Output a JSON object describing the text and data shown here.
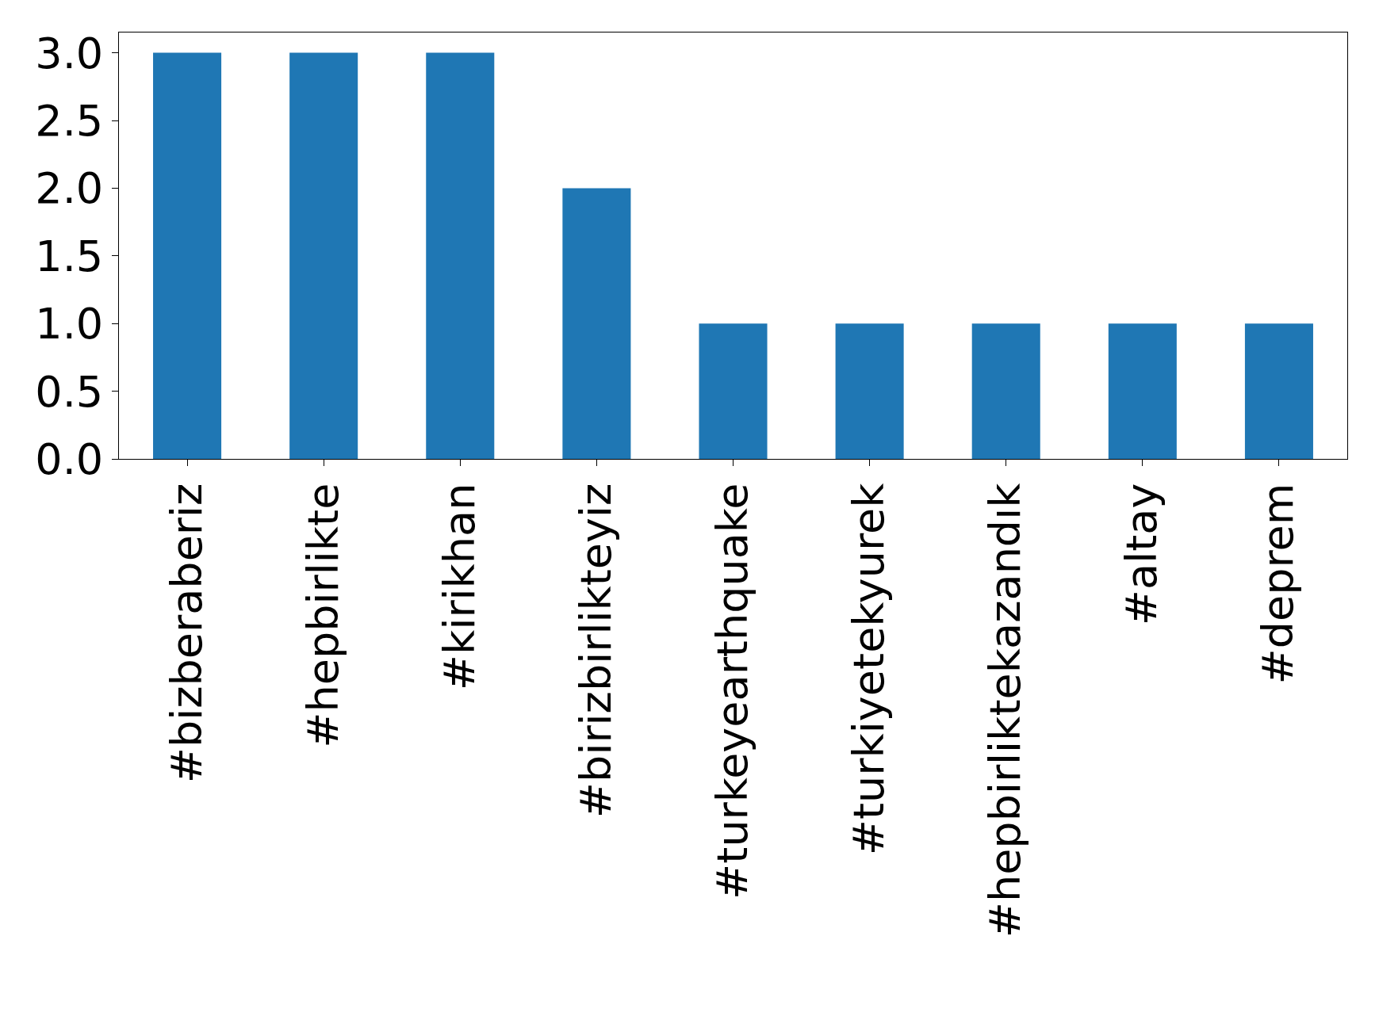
{
  "chart_data": {
    "type": "bar",
    "categories": [
      "#bizberaberiz",
      "#hepbirlikte",
      "#kirikhan",
      "#birizbirlikteyiz",
      "#turkeyearthquake",
      "#turkiyetekyurek",
      "#hepbirliktekazandık",
      "#altay",
      "#deprem"
    ],
    "values": [
      3,
      3,
      3,
      2,
      1,
      1,
      1,
      1,
      1
    ],
    "color": "#1f77b4",
    "ylim": [
      0,
      3.15
    ],
    "yticks": [
      {
        "value": 0,
        "label": "0.0"
      },
      {
        "value": 0.5,
        "label": "0.5"
      },
      {
        "value": 1,
        "label": "1.0"
      },
      {
        "value": 1.5,
        "label": "1.5"
      },
      {
        "value": 2,
        "label": "2.0"
      },
      {
        "value": 2.5,
        "label": "2.5"
      },
      {
        "value": 3,
        "label": "3.0"
      }
    ],
    "legend": false
  }
}
